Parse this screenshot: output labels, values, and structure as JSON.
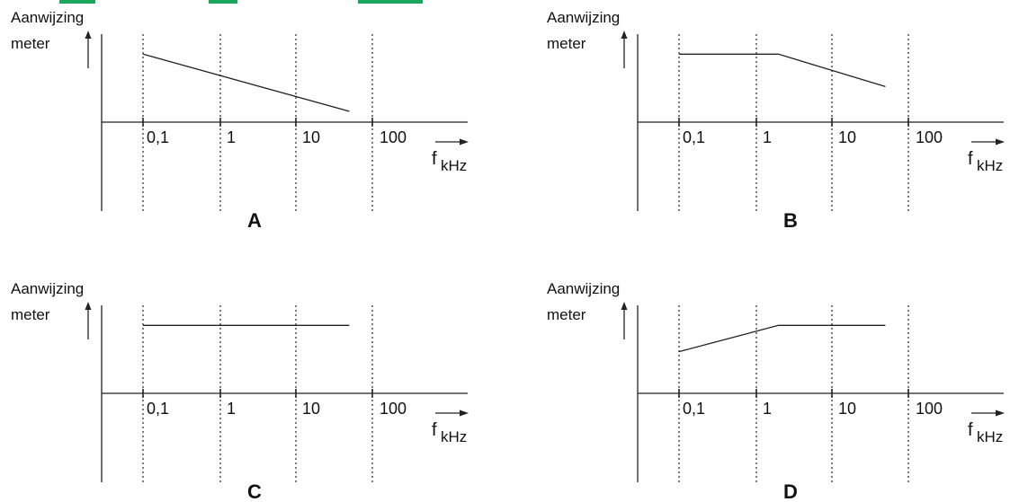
{
  "colors": {
    "top_strip": "#1aa75b",
    "ink": "#222222"
  },
  "chart_data": [
    {
      "type": "line",
      "panel_label": "A",
      "ylabel_lines": [
        "Aanwijzing",
        "meter"
      ],
      "xlabel_var": "f",
      "xlabel_unit": "kHz",
      "x_scale": "log",
      "x_ticks": [
        "0,1",
        "1",
        "10",
        "100"
      ],
      "x": [
        0.1,
        50
      ],
      "y": [
        0.88,
        0.14
      ],
      "ylim": [
        0,
        1
      ],
      "grid": "dotted vertical"
    },
    {
      "type": "line",
      "panel_label": "B",
      "ylabel_lines": [
        "Aanwijzing",
        "meter"
      ],
      "xlabel_var": "f",
      "xlabel_unit": "kHz",
      "x_scale": "log",
      "x_ticks": [
        "0,1",
        "1",
        "10",
        "100"
      ],
      "x": [
        0.1,
        2,
        50
      ],
      "y": [
        0.88,
        0.88,
        0.46
      ],
      "ylim": [
        0,
        1
      ],
      "grid": "dotted vertical"
    },
    {
      "type": "line",
      "panel_label": "C",
      "ylabel_lines": [
        "Aanwijzing",
        "meter"
      ],
      "xlabel_var": "f",
      "xlabel_unit": "kHz",
      "x_scale": "log",
      "x_ticks": [
        "0,1",
        "1",
        "10",
        "100"
      ],
      "x": [
        0.1,
        50
      ],
      "y": [
        0.88,
        0.88
      ],
      "ylim": [
        0,
        1
      ],
      "grid": "dotted vertical"
    },
    {
      "type": "line",
      "panel_label": "D",
      "ylabel_lines": [
        "Aanwijzing",
        "meter"
      ],
      "xlabel_var": "f",
      "xlabel_unit": "kHz",
      "x_scale": "log",
      "x_ticks": [
        "0,1",
        "1",
        "10",
        "100"
      ],
      "x": [
        0.1,
        2,
        50
      ],
      "y": [
        0.54,
        0.88,
        0.88
      ],
      "ylim": [
        0,
        1
      ],
      "grid": "dotted vertical"
    }
  ]
}
